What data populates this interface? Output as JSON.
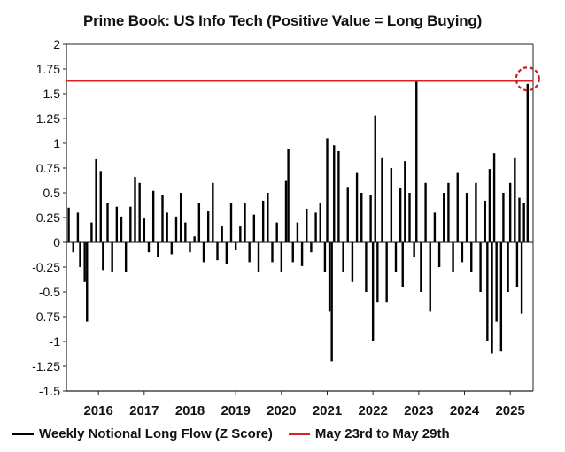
{
  "chart_data": {
    "type": "bar",
    "title": "Prime Book: US Info Tech (Positive Value = Long Buying)",
    "xlabel": "",
    "ylabel": "",
    "ylim": [
      -1.5,
      2
    ],
    "yticks": [
      "2",
      "1.75",
      "1.5",
      "1.25",
      "1",
      "0.75",
      "0.5",
      "0.25",
      "0",
      "-0.25",
      "-0.5",
      "-0.75",
      "-1",
      "-1.25",
      "-1.5"
    ],
    "ytick_values": [
      2,
      1.75,
      1.5,
      1.25,
      1,
      0.75,
      0.5,
      0.25,
      0,
      -0.25,
      -0.5,
      -0.75,
      -1,
      -1.25,
      -1.5
    ],
    "xlim": [
      2015.3,
      2025.5
    ],
    "xticks": [
      "2016",
      "2017",
      "2018",
      "2019",
      "2020",
      "2021",
      "2022",
      "2023",
      "2024",
      "2025"
    ],
    "xtick_values": [
      2016,
      2017,
      2018,
      2019,
      2020,
      2021,
      2022,
      2023,
      2024,
      2025
    ],
    "reference_line": {
      "y": 1.63,
      "label": "May 23rd to May 29th",
      "color": "#e02020"
    },
    "highlight_marker": {
      "x": 2025.38,
      "y": 1.65,
      "style": "dashed-circle",
      "color": "#c81e1e"
    },
    "legend": [
      {
        "label": "Weekly Notional Long Flow (Z Score)",
        "color": "#000000"
      },
      {
        "label": "May 23rd to May 29th",
        "color": "#e02020"
      }
    ],
    "series": [
      {
        "name": "Weekly Notional Long Flow (Z Score)",
        "color": "#000000",
        "points": [
          [
            2015.35,
            0.35
          ],
          [
            2015.45,
            -0.1
          ],
          [
            2015.55,
            0.3
          ],
          [
            2015.6,
            -0.25
          ],
          [
            2015.7,
            -0.4
          ],
          [
            2015.75,
            -0.8
          ],
          [
            2015.85,
            0.2
          ],
          [
            2015.95,
            0.84
          ],
          [
            2016.05,
            0.72
          ],
          [
            2016.1,
            -0.28
          ],
          [
            2016.2,
            0.4
          ],
          [
            2016.3,
            -0.3
          ],
          [
            2016.4,
            0.36
          ],
          [
            2016.5,
            0.26
          ],
          [
            2016.6,
            -0.3
          ],
          [
            2016.7,
            0.36
          ],
          [
            2016.8,
            0.66
          ],
          [
            2016.9,
            0.6
          ],
          [
            2017.0,
            0.24
          ],
          [
            2017.1,
            -0.1
          ],
          [
            2017.2,
            0.52
          ],
          [
            2017.3,
            -0.15
          ],
          [
            2017.4,
            0.48
          ],
          [
            2017.5,
            0.3
          ],
          [
            2017.6,
            -0.12
          ],
          [
            2017.7,
            0.26
          ],
          [
            2017.8,
            0.5
          ],
          [
            2017.9,
            0.2
          ],
          [
            2018.0,
            -0.1
          ],
          [
            2018.1,
            0.06
          ],
          [
            2018.2,
            0.4
          ],
          [
            2018.3,
            -0.2
          ],
          [
            2018.4,
            0.32
          ],
          [
            2018.5,
            0.6
          ],
          [
            2018.6,
            -0.18
          ],
          [
            2018.7,
            0.16
          ],
          [
            2018.8,
            -0.22
          ],
          [
            2018.9,
            0.4
          ],
          [
            2019.0,
            -0.08
          ],
          [
            2019.1,
            0.16
          ],
          [
            2019.2,
            0.4
          ],
          [
            2019.3,
            -0.2
          ],
          [
            2019.4,
            0.28
          ],
          [
            2019.5,
            -0.3
          ],
          [
            2019.6,
            0.42
          ],
          [
            2019.7,
            0.5
          ],
          [
            2019.8,
            -0.2
          ],
          [
            2019.9,
            0.2
          ],
          [
            2020.0,
            -0.3
          ],
          [
            2020.1,
            0.62
          ],
          [
            2020.15,
            0.94
          ],
          [
            2020.25,
            -0.2
          ],
          [
            2020.35,
            0.2
          ],
          [
            2020.45,
            -0.24
          ],
          [
            2020.55,
            0.34
          ],
          [
            2020.65,
            -0.1
          ],
          [
            2020.75,
            0.3
          ],
          [
            2020.85,
            0.4
          ],
          [
            2020.95,
            -0.3
          ],
          [
            2021.0,
            1.05
          ],
          [
            2021.05,
            -0.7
          ],
          [
            2021.1,
            -1.2
          ],
          [
            2021.15,
            0.98
          ],
          [
            2021.25,
            0.92
          ],
          [
            2021.35,
            -0.3
          ],
          [
            2021.45,
            0.56
          ],
          [
            2021.55,
            -0.4
          ],
          [
            2021.65,
            0.7
          ],
          [
            2021.75,
            0.5
          ],
          [
            2021.85,
            -0.5
          ],
          [
            2021.95,
            0.48
          ],
          [
            2022.0,
            -1.0
          ],
          [
            2022.05,
            1.28
          ],
          [
            2022.1,
            -0.6
          ],
          [
            2022.2,
            0.85
          ],
          [
            2022.3,
            -0.6
          ],
          [
            2022.4,
            0.75
          ],
          [
            2022.5,
            -0.3
          ],
          [
            2022.6,
            0.55
          ],
          [
            2022.65,
            -0.45
          ],
          [
            2022.7,
            0.82
          ],
          [
            2022.8,
            0.5
          ],
          [
            2022.9,
            -0.15
          ],
          [
            2022.95,
            1.62
          ],
          [
            2023.05,
            -0.5
          ],
          [
            2023.15,
            0.6
          ],
          [
            2023.25,
            -0.7
          ],
          [
            2023.35,
            0.3
          ],
          [
            2023.45,
            -0.25
          ],
          [
            2023.55,
            0.5
          ],
          [
            2023.65,
            0.6
          ],
          [
            2023.75,
            -0.3
          ],
          [
            2023.85,
            0.7
          ],
          [
            2023.95,
            -0.2
          ],
          [
            2024.05,
            0.5
          ],
          [
            2024.15,
            -0.3
          ],
          [
            2024.25,
            0.6
          ],
          [
            2024.35,
            -0.5
          ],
          [
            2024.45,
            0.42
          ],
          [
            2024.5,
            -1.0
          ],
          [
            2024.55,
            0.74
          ],
          [
            2024.6,
            -1.12
          ],
          [
            2024.65,
            0.9
          ],
          [
            2024.7,
            -0.8
          ],
          [
            2024.8,
            -1.1
          ],
          [
            2024.85,
            0.5
          ],
          [
            2024.95,
            -0.5
          ],
          [
            2025.0,
            0.6
          ],
          [
            2025.1,
            0.85
          ],
          [
            2025.15,
            -0.45
          ],
          [
            2025.2,
            0.45
          ],
          [
            2025.25,
            -0.72
          ],
          [
            2025.3,
            0.4
          ],
          [
            2025.38,
            1.6
          ]
        ]
      }
    ]
  }
}
